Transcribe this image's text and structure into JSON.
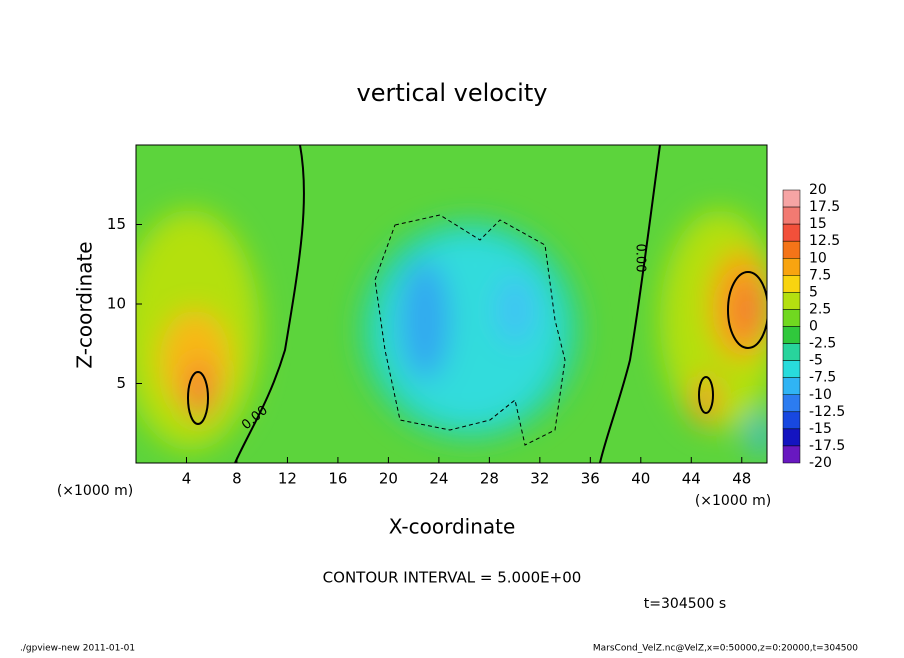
{
  "chart_data": {
    "type": "contour",
    "title": "vertical velocity",
    "xlabel": "X-coordinate",
    "ylabel": "Z-coordinate",
    "xunit": "(×1000 m)",
    "yunit": "(×1000 m)",
    "xlim": [
      0,
      50
    ],
    "xticks": [
      4,
      8,
      12,
      16,
      20,
      24,
      28,
      32,
      36,
      40,
      44,
      48
    ],
    "ylim": [
      0,
      20
    ],
    "yticks": [
      5,
      10,
      15
    ],
    "levels": [
      20,
      17.5,
      15,
      12.5,
      10,
      7.5,
      5,
      2.5,
      0,
      -2.5,
      -5,
      -7.5,
      -10,
      -12.5,
      -15,
      -17.5,
      -20
    ],
    "level_colors": [
      "#f6a4a4",
      "#f27a72",
      "#f2503a",
      "#f47418",
      "#f8a410",
      "#f8d410",
      "#b4e010",
      "#70d820",
      "#30c83c",
      "#28d49c",
      "#28dcdc",
      "#30b4f4",
      "#2c7cf0",
      "#1848e0",
      "#1414c0",
      "#6818c0"
    ],
    "contour_labels": [
      "0.00",
      "0.00"
    ],
    "contour_interval": "CONTOUR INTERVAL = 5.000E+00",
    "time": "t=304500 s",
    "footer_left": "./gpview-new  2011-01-01",
    "footer_right": "MarsCond_VelZ.nc@VelZ,x=0:50000,z=0:20000,t=304500"
  }
}
